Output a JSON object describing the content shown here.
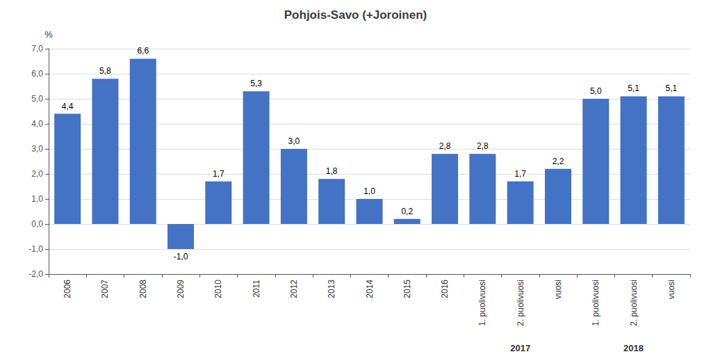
{
  "chart_data": {
    "type": "bar",
    "title": "Pohjois-Savo (+Joroinen)",
    "y_label": "%",
    "categories": [
      "2006",
      "2007",
      "2008",
      "2009",
      "2010",
      "2011",
      "2012",
      "2013",
      "2014",
      "2015",
      "2016",
      "1. puolivuosi",
      "2. puolivuosi",
      "vuosi",
      "1. puolivuosi",
      "2. puolivuosi",
      "vuosi"
    ],
    "category_groups": [
      null,
      null,
      null,
      null,
      null,
      null,
      null,
      null,
      null,
      null,
      null,
      "2017",
      "2017",
      "2017",
      "2018",
      "2018",
      "2018"
    ],
    "values": [
      4.4,
      5.8,
      6.6,
      -1.0,
      1.7,
      5.3,
      3.0,
      1.8,
      1.0,
      0.2,
      2.8,
      2.8,
      1.7,
      2.2,
      5.0,
      5.1,
      5.1
    ],
    "value_labels": [
      "4,4",
      "5,8",
      "6,6",
      "-1,0",
      "1,7",
      "5,3",
      "3,0",
      "1,8",
      "1,0",
      "0,2",
      "2,8",
      "2,8",
      "1,7",
      "2,2",
      "5,0",
      "5,1",
      "5,1"
    ],
    "data_labels": true,
    "color": "#4472C4",
    "ylim": [
      -2.0,
      7.0
    ],
    "yticks": [
      {
        "value": -2.0,
        "label": "-2,0"
      },
      {
        "value": -1.0,
        "label": "-1,0"
      },
      {
        "value": 0.0,
        "label": "0,0"
      },
      {
        "value": 1.0,
        "label": "1,0"
      },
      {
        "value": 2.0,
        "label": "2,0"
      },
      {
        "value": 3.0,
        "label": "3,0"
      },
      {
        "value": 4.0,
        "label": "4,0"
      },
      {
        "value": 5.0,
        "label": "5,0"
      },
      {
        "value": 6.0,
        "label": "6,0"
      },
      {
        "value": 7.0,
        "label": "7,0"
      }
    ],
    "grid": true
  }
}
